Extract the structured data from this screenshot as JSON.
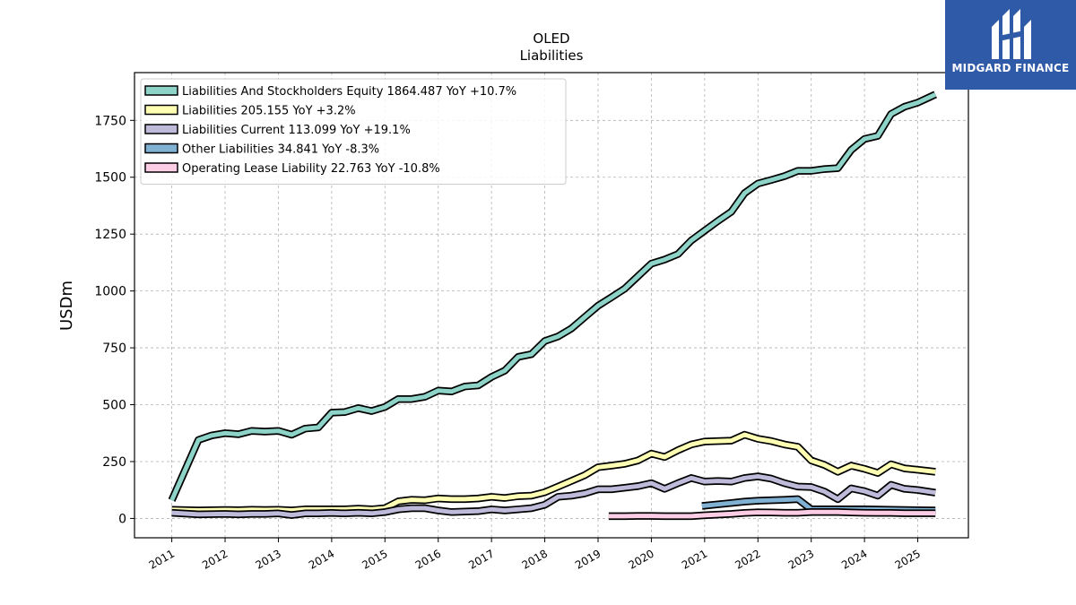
{
  "brand": {
    "name": "MIDGARD FINANCE",
    "bg": "#2f5aa8"
  },
  "chart_data": {
    "type": "line",
    "title": "OLED",
    "subtitle": "Liabilities",
    "ylabel": "USDm",
    "ylim": [
      -85,
      1960
    ],
    "xlim": [
      2010.3,
      2025.95
    ],
    "yticks": [
      0,
      250,
      500,
      750,
      1000,
      1250,
      1500,
      1750
    ],
    "xticks": [
      2011,
      2012,
      2013,
      2014,
      2015,
      2016,
      2017,
      2018,
      2019,
      2020,
      2021,
      2022,
      2023,
      2024,
      2025
    ],
    "grid": true,
    "legend_position": "top-left",
    "series": [
      {
        "name": "Liabilities And Stockholders Equity",
        "value_label": "1864.487",
        "yoy": "YoY +10.7%",
        "color": "#8dd3c7",
        "x": [
          2011.0,
          2011.5,
          2011.75,
          2012.0,
          2012.25,
          2012.5,
          2012.75,
          2013.0,
          2013.25,
          2013.5,
          2013.75,
          2014.0,
          2014.25,
          2014.5,
          2014.75,
          2015.0,
          2015.25,
          2015.5,
          2015.75,
          2016.0,
          2016.25,
          2016.5,
          2016.75,
          2017.0,
          2017.25,
          2017.5,
          2017.75,
          2018.0,
          2018.25,
          2018.5,
          2018.75,
          2019.0,
          2019.25,
          2019.5,
          2019.75,
          2020.0,
          2020.25,
          2020.5,
          2020.75,
          2021.0,
          2021.25,
          2021.5,
          2021.75,
          2022.0,
          2022.25,
          2022.5,
          2022.75,
          2023.0,
          2023.25,
          2023.5,
          2023.75,
          2024.0,
          2024.25,
          2024.5,
          2024.75,
          2025.0,
          2025.33
        ],
        "y": [
          80,
          345,
          365,
          375,
          370,
          385,
          382,
          385,
          368,
          395,
          400,
          465,
          468,
          485,
          472,
          490,
          525,
          525,
          535,
          562,
          558,
          580,
          585,
          622,
          650,
          710,
          722,
          780,
          800,
          835,
          885,
          935,
          972,
          1010,
          1065,
          1120,
          1138,
          1162,
          1222,
          1265,
          1308,
          1348,
          1430,
          1472,
          1488,
          1505,
          1528,
          1528,
          1536,
          1540,
          1620,
          1668,
          1682,
          1778,
          1810,
          1828,
          1864
        ]
      },
      {
        "name": "Liabilities",
        "value_label": "205.155",
        "yoy": "YoY +3.2%",
        "color": "#ffffb3",
        "x": [
          2011.0,
          2011.5,
          2012.0,
          2012.25,
          2012.5,
          2012.75,
          2013.0,
          2013.25,
          2013.5,
          2013.75,
          2014.0,
          2014.25,
          2014.5,
          2014.75,
          2015.0,
          2015.25,
          2015.5,
          2015.75,
          2016.0,
          2016.25,
          2016.5,
          2016.75,
          2017.0,
          2017.25,
          2017.5,
          2017.75,
          2018.0,
          2018.25,
          2018.5,
          2018.75,
          2019.0,
          2019.25,
          2019.5,
          2019.75,
          2020.0,
          2020.25,
          2020.5,
          2020.75,
          2021.0,
          2021.25,
          2021.5,
          2021.75,
          2022.0,
          2022.25,
          2022.5,
          2022.75,
          2023.0,
          2023.25,
          2023.5,
          2023.75,
          2024.0,
          2024.25,
          2024.5,
          2024.75,
          2025.0,
          2025.33
        ],
        "y": [
          38,
          35,
          37,
          36,
          38,
          37,
          38,
          35,
          40,
          40,
          40,
          40,
          43,
          40,
          45,
          75,
          82,
          80,
          88,
          85,
          85,
          88,
          95,
          90,
          98,
          100,
          115,
          140,
          165,
          190,
          225,
          232,
          240,
          255,
          285,
          270,
          300,
          325,
          338,
          340,
          342,
          368,
          350,
          340,
          325,
          315,
          255,
          235,
          205,
          232,
          218,
          200,
          238,
          220,
          214,
          205
        ]
      },
      {
        "name": "Liabilities Current",
        "value_label": "113.099",
        "yoy": "YoY +19.1%",
        "color": "#bebada",
        "x": [
          2011.0,
          2011.5,
          2012.0,
          2012.25,
          2012.5,
          2012.75,
          2013.0,
          2013.25,
          2013.5,
          2013.75,
          2014.0,
          2014.25,
          2014.5,
          2014.75,
          2015.0,
          2015.25,
          2015.5,
          2015.75,
          2016.0,
          2016.25,
          2016.5,
          2016.75,
          2017.0,
          2017.25,
          2017.5,
          2017.75,
          2018.0,
          2018.25,
          2018.5,
          2018.75,
          2019.0,
          2019.25,
          2019.5,
          2019.75,
          2020.0,
          2020.25,
          2020.5,
          2020.75,
          2021.0,
          2021.25,
          2021.5,
          2021.75,
          2022.0,
          2022.25,
          2022.5,
          2022.75,
          2023.0,
          2023.25,
          2023.5,
          2023.75,
          2024.0,
          2024.25,
          2024.5,
          2024.75,
          2025.0,
          2025.33
        ],
        "y": [
          25,
          18,
          20,
          18,
          20,
          20,
          22,
          15,
          22,
          22,
          24,
          22,
          25,
          22,
          28,
          40,
          45,
          45,
          35,
          28,
          30,
          32,
          40,
          35,
          40,
          45,
          60,
          95,
          100,
          110,
          128,
          128,
          135,
          142,
          155,
          130,
          155,
          178,
          162,
          165,
          162,
          178,
          185,
          175,
          155,
          140,
          138,
          118,
          85,
          132,
          120,
          100,
          148,
          130,
          125,
          113
        ]
      },
      {
        "name": "Other Liabilities",
        "value_label": "34.841",
        "yoy": "YoY -8.3%",
        "color": "#80b1d3",
        "x": [
          2020.95,
          2021.25,
          2021.5,
          2021.75,
          2022.0,
          2022.25,
          2022.5,
          2022.75,
          2023.0,
          2023.25,
          2023.5,
          2023.75,
          2024.0,
          2024.25,
          2024.5,
          2024.75,
          2025.0,
          2025.33
        ],
        "y": [
          55,
          62,
          68,
          74,
          78,
          80,
          82,
          85,
          40,
          40,
          40,
          40,
          40,
          39,
          38,
          37,
          36,
          35
        ]
      },
      {
        "name": "Operating Lease Liability",
        "value_label": "22.763",
        "yoy": "YoY -10.8%",
        "color": "#fccde5",
        "x": [
          2019.2,
          2019.5,
          2019.75,
          2020.0,
          2020.25,
          2020.5,
          2020.75,
          2021.0,
          2021.25,
          2021.5,
          2021.75,
          2022.0,
          2022.25,
          2022.5,
          2022.75,
          2023.0,
          2023.25,
          2023.5,
          2023.75,
          2024.0,
          2024.25,
          2024.5,
          2024.75,
          2025.0,
          2025.33
        ],
        "y": [
          10,
          10,
          11,
          11,
          10,
          10,
          10,
          14,
          17,
          20,
          24,
          27,
          26,
          25,
          25,
          28,
          28,
          28,
          26,
          25,
          24,
          24,
          23,
          23,
          23
        ]
      }
    ]
  }
}
